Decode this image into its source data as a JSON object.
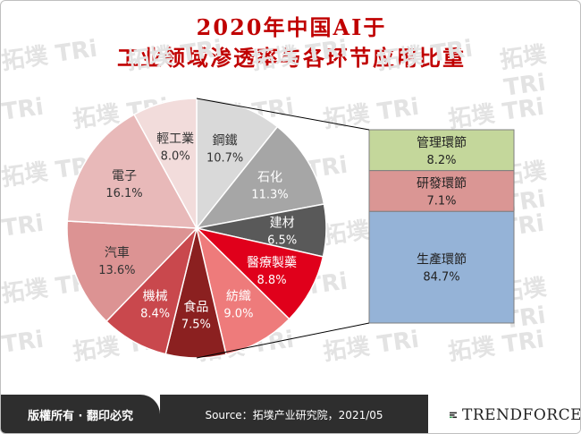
{
  "title": {
    "line1": "2020年中国AI于",
    "line2": "工业领域渗透率与各环节应用比重"
  },
  "watermark_text": "拓墣 TRi",
  "chart_data": [
    {
      "type": "pie",
      "slices": [
        {
          "label": "鋼鐵",
          "value": 10.7,
          "display": "10.7%",
          "color": "#d9d9d9",
          "text_color": "#333333"
        },
        {
          "label": "石化",
          "value": 11.3,
          "display": "11.3%",
          "color": "#a6a6a6",
          "text_color": "#ffffff"
        },
        {
          "label": "建材",
          "value": 6.5,
          "display": "6.5%",
          "color": "#595959",
          "text_color": "#ffffff"
        },
        {
          "label": "醫療製藥",
          "value": 8.8,
          "display": "8.8%",
          "color": "#e0001b",
          "text_color": "#ffffff"
        },
        {
          "label": "紡織",
          "value": 9.0,
          "display": "9.0%",
          "color": "#ee7b7b",
          "text_color": "#ffffff"
        },
        {
          "label": "食品",
          "value": 7.5,
          "display": "7.5%",
          "color": "#8b2020",
          "text_color": "#ffffff"
        },
        {
          "label": "機械",
          "value": 8.4,
          "display": "8.4%",
          "color": "#c9484d",
          "text_color": "#ffffff"
        },
        {
          "label": "汽車",
          "value": 13.6,
          "display": "13.6%",
          "color": "#dc9393",
          "text_color": "#333333"
        },
        {
          "label": "電子",
          "value": 16.1,
          "display": "16.1%",
          "color": "#e8b9b9",
          "text_color": "#333333"
        },
        {
          "label": "輕工業",
          "value": 8.0,
          "display": "8.0%",
          "color": "#f2dcdb",
          "text_color": "#333333"
        }
      ]
    },
    {
      "type": "bar",
      "stacked": true,
      "series": [
        {
          "name": "管理環節",
          "value": 8.2,
          "display": "8.2%",
          "color": "#c4d79b"
        },
        {
          "name": "研發環節",
          "value": 7.1,
          "display": "7.1%",
          "color": "#da9694"
        },
        {
          "name": "生產環節",
          "value": 84.7,
          "display": "84.7%",
          "color": "#95b3d7"
        }
      ]
    }
  ],
  "footer": {
    "rights": "版權所有 · 翻印必究",
    "source": "Source：拓墣产业研究院，2021/05",
    "brand": "TRENDFORCE"
  }
}
